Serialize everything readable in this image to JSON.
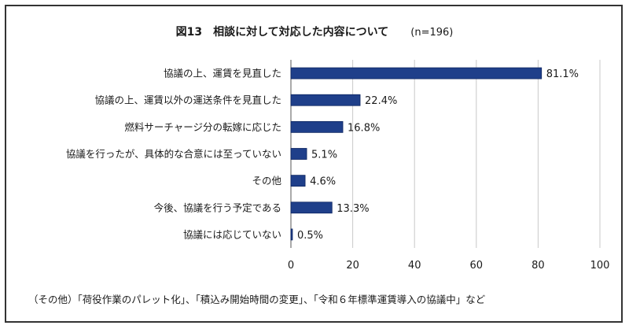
{
  "title": "図13　相談に対して対応した内容について",
  "sample_note": "(n=196)",
  "footnote": "（その他）「荷役作業のパレット化」、「積込み開始時間の変更」、「令和６年標準運賃導入の協議中」など",
  "colors": {
    "bar": "#1f3f8a",
    "bar_edge": "#0d2560",
    "grid": "#c8c8c8",
    "axis": "#555555"
  },
  "chart_data": {
    "type": "bar",
    "orientation": "horizontal",
    "title": "図13　相談に対して対応した内容について",
    "categories": [
      "協議の上、運賃を見直した",
      "協議の上、運賃以外の運送条件を見直した",
      "燃料サーチャージ分の転嫁に応じた",
      "協議を行ったが、具体的な合意には至っていない",
      "その他",
      "今後、協議を行う予定である",
      "協議には応じていない"
    ],
    "values": [
      81.1,
      22.4,
      16.8,
      5.1,
      4.6,
      13.3,
      0.5
    ],
    "value_labels": [
      "81.1%",
      "22.4%",
      "16.8%",
      "5.1%",
      "4.6%",
      "13.3%",
      "0.5%"
    ],
    "xlim": [
      0,
      100
    ],
    "xticks": [
      0,
      20,
      40,
      60,
      80,
      100
    ],
    "grid": "vertical",
    "xlabel": "",
    "ylabel": ""
  }
}
